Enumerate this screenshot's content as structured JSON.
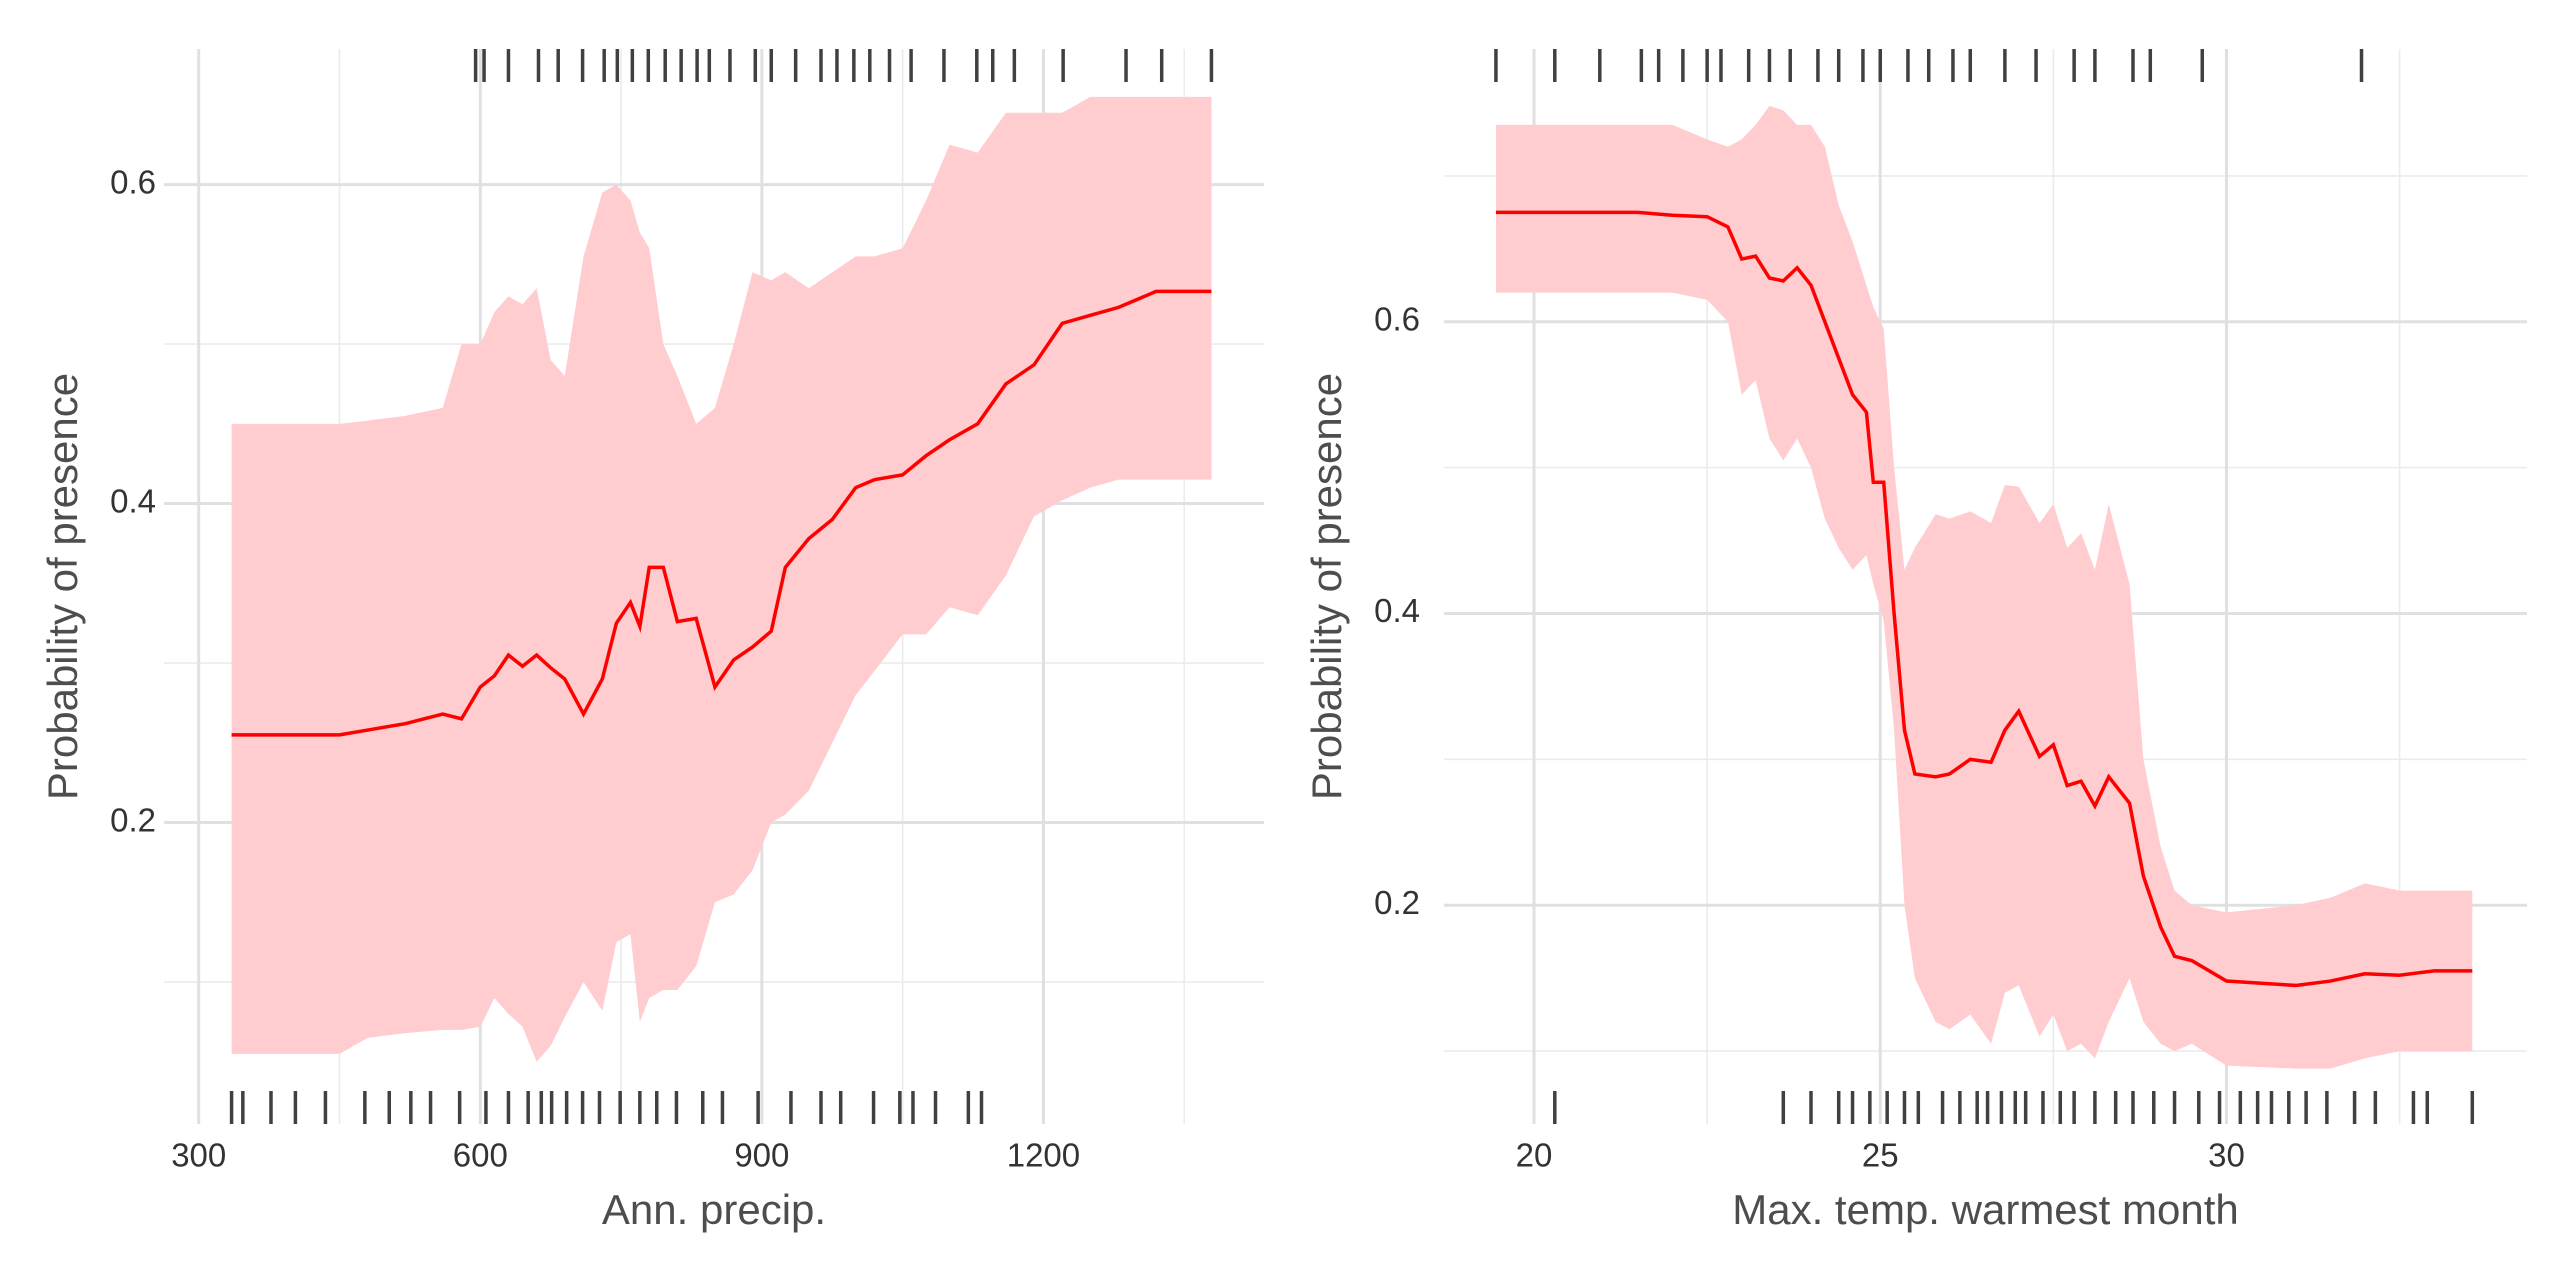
{
  "chart_data": [
    {
      "type": "line",
      "x_label": "Ann. precip.",
      "y_label": "Probability of presence",
      "color": "#ff0000",
      "band_color": "#ffcccf",
      "rug_color": "#404040",
      "grid": true,
      "xlim": [
        263,
        1435
      ],
      "ylim": [
        0.011,
        0.685
      ],
      "xticks": [
        300,
        600,
        900,
        1200
      ],
      "xticks_minor": [
        450,
        750,
        1050,
        1350
      ],
      "yticks": [
        0.2,
        0.4,
        0.6
      ],
      "yticks_minor": [
        0.1,
        0.3,
        0.5
      ],
      "x": [
        335,
        400,
        450,
        480,
        520,
        560,
        580,
        600,
        615,
        630,
        645,
        660,
        675,
        690,
        710,
        730,
        745,
        760,
        770,
        780,
        795,
        810,
        830,
        850,
        870,
        890,
        910,
        925,
        950,
        975,
        1000,
        1020,
        1050,
        1075,
        1100,
        1130,
        1160,
        1190,
        1220,
        1250,
        1280,
        1320,
        1379
      ],
      "values": [
        0.255,
        0.255,
        0.255,
        0.258,
        0.262,
        0.268,
        0.265,
        0.285,
        0.292,
        0.305,
        0.298,
        0.305,
        0.297,
        0.29,
        0.268,
        0.29,
        0.325,
        0.338,
        0.323,
        0.36,
        0.36,
        0.326,
        0.328,
        0.285,
        0.302,
        0.31,
        0.32,
        0.36,
        0.378,
        0.39,
        0.41,
        0.415,
        0.418,
        0.43,
        0.44,
        0.45,
        0.475,
        0.487,
        0.513,
        0.518,
        0.523,
        0.533,
        0.533
      ],
      "upper": [
        0.45,
        0.45,
        0.45,
        0.452,
        0.455,
        0.46,
        0.5,
        0.5,
        0.52,
        0.53,
        0.525,
        0.535,
        0.49,
        0.48,
        0.555,
        0.595,
        0.6,
        0.59,
        0.57,
        0.56,
        0.5,
        0.48,
        0.45,
        0.46,
        0.5,
        0.545,
        0.54,
        0.545,
        0.535,
        0.545,
        0.555,
        0.555,
        0.56,
        0.59,
        0.625,
        0.62,
        0.645,
        0.645,
        0.645,
        0.655,
        0.655,
        0.655,
        0.655
      ],
      "lower": [
        0.055,
        0.055,
        0.055,
        0.065,
        0.068,
        0.07,
        0.07,
        0.072,
        0.09,
        0.08,
        0.072,
        0.05,
        0.06,
        0.078,
        0.1,
        0.082,
        0.125,
        0.13,
        0.075,
        0.09,
        0.095,
        0.095,
        0.11,
        0.15,
        0.155,
        0.17,
        0.2,
        0.205,
        0.22,
        0.25,
        0.28,
        0.295,
        0.318,
        0.318,
        0.335,
        0.33,
        0.355,
        0.392,
        0.402,
        0.41,
        0.415,
        0.415,
        0.415
      ],
      "rug_top": [
        595,
        604,
        630,
        662,
        683,
        709,
        732,
        746,
        762,
        779,
        797,
        814,
        831,
        844,
        866,
        893,
        910,
        936,
        963,
        980,
        998,
        1015,
        1036,
        1059,
        1094,
        1129,
        1146,
        1169,
        1221,
        1288,
        1326,
        1379
      ],
      "rug_bottom": [
        335,
        347,
        377,
        403,
        435,
        477,
        503,
        526,
        547,
        578,
        606,
        630,
        651,
        665,
        676,
        692,
        709,
        727,
        749,
        770,
        788,
        809,
        837,
        858,
        896,
        931,
        963,
        984,
        1019,
        1047,
        1061,
        1085,
        1120,
        1134
      ]
    },
    {
      "type": "line",
      "x_label": "Max. temp. warmest month",
      "y_label": "Probability of presence",
      "color": "#ff0000",
      "band_color": "#ffcccf",
      "rug_color": "#404040",
      "grid": true,
      "xlim": [
        18.7,
        34.34
      ],
      "ylim": [
        0.05,
        0.787
      ],
      "xticks": [
        20,
        25,
        30
      ],
      "xticks_minor": [
        22.5,
        27.5,
        32.5
      ],
      "yticks": [
        0.2,
        0.4,
        0.6
      ],
      "yticks_minor": [
        0.1,
        0.3,
        0.5,
        0.7
      ],
      "x": [
        19.45,
        20.5,
        21.5,
        22.0,
        22.5,
        22.8,
        23.0,
        23.2,
        23.4,
        23.6,
        23.8,
        24.0,
        24.2,
        24.4,
        24.6,
        24.8,
        24.9,
        25.05,
        25.2,
        25.35,
        25.5,
        25.8,
        26.0,
        26.3,
        26.6,
        26.8,
        27.0,
        27.3,
        27.5,
        27.7,
        27.9,
        28.1,
        28.3,
        28.6,
        28.8,
        29.05,
        29.25,
        29.5,
        30.0,
        31.0,
        31.5,
        32.0,
        32.5,
        33.0,
        33.55
      ],
      "values": [
        0.675,
        0.675,
        0.675,
        0.673,
        0.672,
        0.665,
        0.643,
        0.645,
        0.63,
        0.628,
        0.637,
        0.625,
        0.6,
        0.575,
        0.55,
        0.538,
        0.49,
        0.49,
        0.4,
        0.32,
        0.29,
        0.288,
        0.29,
        0.3,
        0.298,
        0.32,
        0.333,
        0.302,
        0.31,
        0.282,
        0.285,
        0.268,
        0.288,
        0.27,
        0.22,
        0.185,
        0.165,
        0.162,
        0.148,
        0.145,
        0.148,
        0.153,
        0.152,
        0.155,
        0.155
      ],
      "upper": [
        0.735,
        0.735,
        0.735,
        0.735,
        0.725,
        0.72,
        0.725,
        0.735,
        0.748,
        0.745,
        0.735,
        0.735,
        0.72,
        0.68,
        0.655,
        0.625,
        0.61,
        0.595,
        0.5,
        0.43,
        0.445,
        0.468,
        0.465,
        0.47,
        0.462,
        0.488,
        0.487,
        0.462,
        0.475,
        0.445,
        0.455,
        0.43,
        0.475,
        0.42,
        0.3,
        0.24,
        0.21,
        0.2,
        0.195,
        0.2,
        0.205,
        0.215,
        0.21,
        0.21,
        0.21
      ],
      "lower": [
        0.62,
        0.62,
        0.62,
        0.62,
        0.615,
        0.6,
        0.55,
        0.56,
        0.52,
        0.505,
        0.52,
        0.5,
        0.465,
        0.445,
        0.43,
        0.44,
        0.42,
        0.395,
        0.32,
        0.2,
        0.15,
        0.12,
        0.115,
        0.125,
        0.105,
        0.14,
        0.145,
        0.11,
        0.125,
        0.1,
        0.105,
        0.095,
        0.12,
        0.15,
        0.12,
        0.105,
        0.1,
        0.105,
        0.09,
        0.088,
        0.088,
        0.095,
        0.1,
        0.1,
        0.1
      ],
      "rug_top": [
        19.45,
        20.3,
        20.95,
        21.55,
        21.8,
        22.15,
        22.5,
        22.7,
        23.1,
        23.4,
        23.7,
        24.1,
        24.4,
        24.75,
        25.0,
        25.4,
        25.7,
        26.05,
        26.3,
        26.8,
        27.25,
        27.8,
        28.1,
        28.65,
        28.9,
        29.65,
        31.95
      ],
      "rug_bottom": [
        20.3,
        23.6,
        24.0,
        24.4,
        24.6,
        24.85,
        25.1,
        25.35,
        25.55,
        25.9,
        26.15,
        26.4,
        26.55,
        26.75,
        26.95,
        27.1,
        27.35,
        27.6,
        27.8,
        28.1,
        28.4,
        28.65,
        28.95,
        29.25,
        29.6,
        29.9,
        30.2,
        30.45,
        30.65,
        30.9,
        31.15,
        31.45,
        31.85,
        32.15,
        32.7,
        32.9,
        33.55
      ]
    }
  ]
}
